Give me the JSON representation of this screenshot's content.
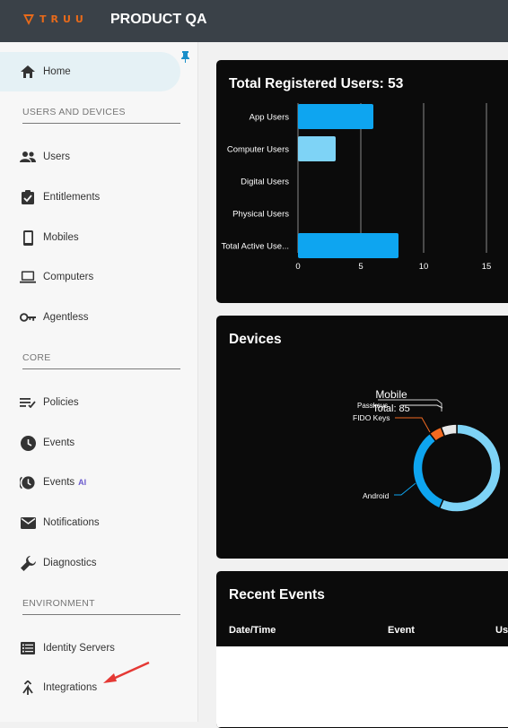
{
  "header": {
    "logo_text": "TRUU",
    "app_title": "PRODUCT QA"
  },
  "sidebar": {
    "items": [
      {
        "label": "Home",
        "icon": "home-icon"
      },
      {
        "label": "Users",
        "icon": "users-icon"
      },
      {
        "label": "Entitlements",
        "icon": "clipboard-check-icon"
      },
      {
        "label": "Mobiles",
        "icon": "mobile-icon"
      },
      {
        "label": "Computers",
        "icon": "laptop-icon"
      },
      {
        "label": "Agentless",
        "icon": "key-icon"
      },
      {
        "label": "Policies",
        "icon": "policy-list-icon"
      },
      {
        "label": "Events",
        "icon": "clock-icon"
      },
      {
        "label": "Events",
        "badge": "AI",
        "icon": "clock-ai-icon"
      },
      {
        "label": "Notifications",
        "icon": "mail-icon"
      },
      {
        "label": "Diagnostics",
        "icon": "wrench-icon"
      },
      {
        "label": "Identity Servers",
        "icon": "server-icon"
      },
      {
        "label": "Integrations",
        "icon": "merge-icon"
      }
    ],
    "sections": [
      "USERS AND DEVICES",
      "CORE",
      "ENVIRONMENT"
    ]
  },
  "users_card": {
    "title": "Total Registered Users: 53"
  },
  "devices_card": {
    "title": "Devices",
    "center_label": "Mobile",
    "total_label": "Total: 85",
    "slice_labels": [
      "Passkeys",
      "FIDO Keys",
      "Android"
    ]
  },
  "events_card": {
    "title": "Recent Events",
    "columns": [
      "Date/Time",
      "Event",
      "Us"
    ]
  },
  "chart_data": [
    {
      "type": "bar",
      "orientation": "horizontal",
      "title": "Total Registered Users: 53",
      "categories": [
        "App Users",
        "Computer Users",
        "Digital Users",
        "Physical Users",
        "Total Active Use..."
      ],
      "values": [
        6,
        3,
        0,
        0,
        8
      ],
      "colors": [
        "#0ea5f0",
        "#7ed3f6",
        "#0ea5f0",
        "#0ea5f0",
        "#0ea5f0"
      ],
      "xticks": [
        0,
        5,
        10,
        15
      ],
      "xlim": [
        0,
        18
      ],
      "grid": true
    },
    {
      "type": "pie",
      "title": "Devices",
      "labels": [
        "Android",
        "Mobile",
        "FIDO Keys",
        "Passkeys"
      ],
      "values": [
        28,
        48,
        4,
        5
      ],
      "colors": [
        "#0ea5f0",
        "#7ed3f6",
        "#f26a21",
        "#e8e8e8"
      ]
    }
  ],
  "colors": {
    "accent": "#0ea5f0",
    "brand": "#e86a1a",
    "annotation_arrow": "#e53935"
  }
}
